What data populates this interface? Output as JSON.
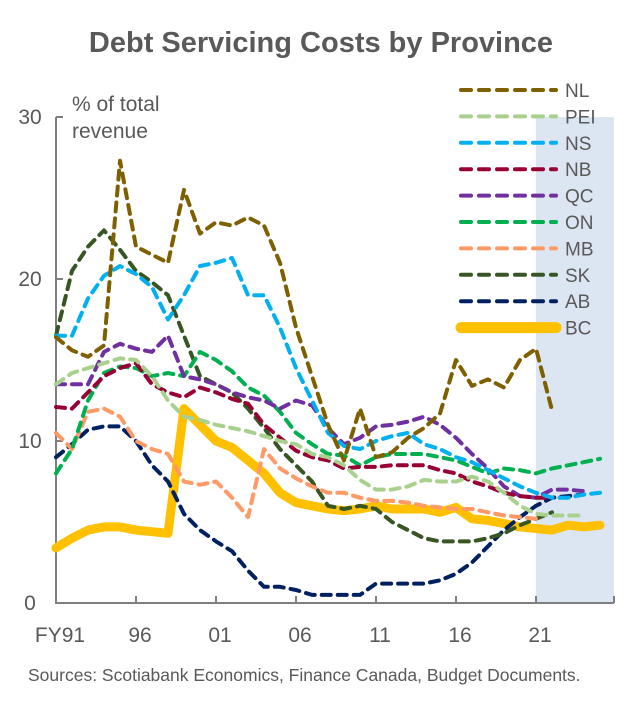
{
  "chart_data": {
    "type": "line",
    "title": "Debt Servicing Costs by Province",
    "ylabel": "% of total revenue",
    "ylabel_lines": [
      "% of total",
      "revenue"
    ],
    "xlabel": "",
    "ylim": [
      0,
      30
    ],
    "yticks": [
      0,
      10,
      20,
      30
    ],
    "x_start_year": 1991,
    "x": [
      1991,
      1992,
      1993,
      1994,
      1995,
      1996,
      1997,
      1998,
      1999,
      2000,
      2001,
      2002,
      2003,
      2004,
      2005,
      2006,
      2007,
      2008,
      2009,
      2010,
      2011,
      2012,
      2013,
      2014,
      2015,
      2016,
      2017,
      2018,
      2019,
      2020,
      2021,
      2022,
      2023,
      2024,
      2025
    ],
    "xticks": [
      {
        "year": 1991,
        "label": "FY91"
      },
      {
        "year": 1996,
        "label": "96"
      },
      {
        "year": 2001,
        "label": "01"
      },
      {
        "year": 2006,
        "label": "06"
      },
      {
        "year": 2011,
        "label": "11"
      },
      {
        "year": 2016,
        "label": "16"
      },
      {
        "year": 2021,
        "label": "21"
      }
    ],
    "shaded_region": {
      "from_year": 2021,
      "to_year": 2025.9,
      "color": "#dce6f2",
      "meaning": "projection"
    },
    "grid": false,
    "legend_position": "top-right",
    "series": [
      {
        "name": "NL",
        "color": "#7f6000",
        "dashed": true,
        "values": [
          16.4,
          15.6,
          15.2,
          15.9,
          27.3,
          22.0,
          21.5,
          21.0,
          25.5,
          22.8,
          23.5,
          23.3,
          23.8,
          23.3,
          21.0,
          17.0,
          14.0,
          11.0,
          8.8,
          12.0,
          9.0,
          9.3,
          10.2,
          10.8,
          11.7,
          15.0,
          13.4,
          13.8,
          13.3,
          15.0,
          15.7,
          11.9,
          null,
          null,
          null
        ]
      },
      {
        "name": "PEI",
        "color": "#a9d18e",
        "dashed": true,
        "values": [
          13.5,
          14.2,
          14.5,
          14.8,
          15.1,
          15.0,
          14.0,
          12.5,
          11.5,
          11.3,
          11.0,
          10.8,
          10.6,
          10.3,
          10.0,
          9.8,
          9.2,
          9.0,
          8.5,
          7.6,
          7.0,
          7.0,
          7.2,
          7.6,
          7.5,
          7.5,
          7.8,
          7.5,
          6.8,
          6.0,
          5.5,
          5.4,
          5.4,
          5.4,
          null
        ]
      },
      {
        "name": "NS",
        "color": "#00b0f0",
        "dashed": true,
        "values": [
          16.5,
          16.5,
          18.8,
          20.2,
          20.8,
          20.3,
          19.5,
          17.5,
          19.0,
          20.8,
          21.0,
          21.3,
          19.0,
          19.0,
          17.0,
          14.5,
          12.5,
          10.5,
          9.7,
          9.5,
          10.0,
          10.3,
          10.5,
          9.8,
          9.5,
          9.0,
          8.7,
          8.2,
          7.7,
          7.2,
          6.8,
          6.5,
          6.5,
          6.7,
          6.8
        ]
      },
      {
        "name": "NB",
        "color": "#990033",
        "dashed": true,
        "values": [
          12.1,
          12.0,
          13.0,
          14.0,
          14.5,
          14.8,
          13.5,
          13.0,
          12.7,
          13.3,
          13.0,
          12.6,
          12.3,
          11.0,
          10.2,
          9.4,
          9.0,
          8.8,
          8.3,
          8.4,
          8.4,
          8.5,
          8.5,
          8.5,
          8.2,
          8.0,
          7.5,
          7.2,
          6.8,
          6.6,
          6.5,
          6.5,
          null,
          null,
          null
        ]
      },
      {
        "name": "QC",
        "color": "#7030a0",
        "dashed": true,
        "values": [
          13.5,
          13.5,
          13.5,
          15.5,
          16.0,
          15.7,
          15.5,
          16.5,
          14.0,
          13.8,
          13.5,
          13.0,
          12.7,
          12.5,
          12.0,
          12.5,
          12.2,
          10.8,
          9.8,
          10.2,
          10.9,
          11.0,
          11.2,
          11.5,
          11.0,
          10.2,
          9.2,
          8.3,
          7.2,
          6.6,
          6.5,
          7.0,
          7.0,
          6.9,
          null
        ]
      },
      {
        "name": "ON",
        "color": "#00b050",
        "dashed": true,
        "values": [
          8.0,
          9.5,
          12.5,
          14.2,
          14.6,
          14.5,
          14.0,
          14.2,
          14.0,
          15.5,
          15.0,
          14.3,
          13.3,
          12.8,
          11.8,
          10.5,
          9.8,
          9.2,
          9.1,
          8.5,
          9.0,
          9.2,
          9.2,
          9.2,
          9.0,
          8.8,
          8.4,
          8.0,
          8.3,
          8.2,
          8.0,
          8.3,
          8.5,
          8.7,
          8.9
        ]
      },
      {
        "name": "MB",
        "color": "#ff9966",
        "dashed": true,
        "values": [
          10.5,
          9.5,
          11.8,
          12.0,
          11.5,
          10.0,
          9.5,
          9.2,
          7.5,
          7.3,
          7.5,
          6.5,
          5.3,
          9.5,
          8.3,
          7.7,
          7.2,
          6.8,
          6.8,
          6.5,
          6.3,
          6.3,
          6.2,
          6.0,
          5.9,
          5.8,
          5.8,
          5.6,
          5.4,
          5.3,
          5.2,
          null,
          null,
          null,
          null
        ]
      },
      {
        "name": "SK",
        "color": "#375623",
        "dashed": true,
        "values": [
          16.5,
          20.5,
          22.0,
          23.0,
          21.8,
          20.5,
          19.8,
          19.0,
          16.5,
          14.0,
          13.5,
          13.0,
          12.0,
          10.8,
          9.5,
          8.5,
          7.5,
          6.0,
          5.8,
          6.0,
          5.8,
          5.0,
          4.5,
          4.0,
          3.8,
          3.8,
          3.8,
          4.0,
          4.3,
          4.8,
          5.2,
          5.6,
          null,
          null,
          null
        ]
      },
      {
        "name": "AB",
        "color": "#002060",
        "dashed": true,
        "values": [
          9.0,
          9.8,
          10.7,
          10.9,
          10.9,
          10.0,
          8.5,
          7.5,
          5.5,
          4.5,
          3.8,
          3.2,
          2.0,
          1.0,
          1.0,
          0.8,
          0.5,
          0.5,
          0.5,
          0.5,
          1.2,
          1.2,
          1.2,
          1.2,
          1.4,
          1.8,
          2.5,
          3.5,
          4.5,
          5.3,
          6.0,
          6.5,
          6.6,
          6.7,
          null
        ]
      },
      {
        "name": "BC",
        "color": "#ffc000",
        "dashed": false,
        "values": [
          3.4,
          4.0,
          4.5,
          4.7,
          4.7,
          4.5,
          4.4,
          4.3,
          12.0,
          11.0,
          10.0,
          9.6,
          8.8,
          8.0,
          6.8,
          6.2,
          6.0,
          5.8,
          5.7,
          5.8,
          6.0,
          5.8,
          5.8,
          5.8,
          5.6,
          5.9,
          5.2,
          5.1,
          4.9,
          4.7,
          4.6,
          4.5,
          4.8,
          4.7,
          4.8
        ]
      }
    ]
  },
  "footer": {
    "source": "Sources: Scotiabank Economics, Finance Canada, Budget Documents."
  }
}
